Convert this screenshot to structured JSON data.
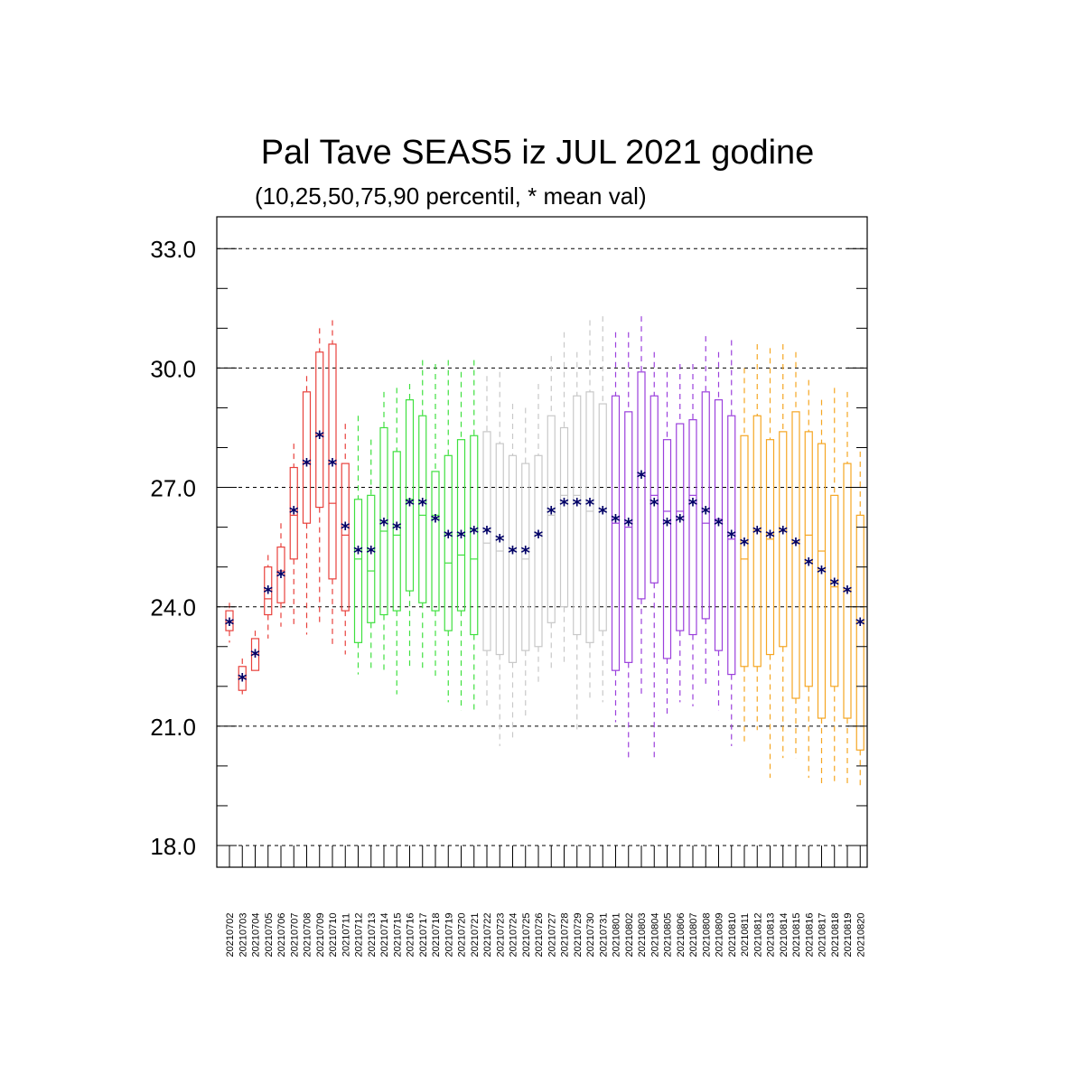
{
  "chart_data": {
    "type": "box",
    "title": "Pal Tave SEAS5 iz JUL 2021 godine",
    "subtitle": "(10,25,50,75,90 percentil, * mean val)",
    "ylim": [
      18.0,
      33.8
    ],
    "yticks": [
      "18.0",
      "21.0",
      "24.0",
      "27.0",
      "30.0",
      "33.0"
    ],
    "ytick_values": [
      18,
      21,
      24,
      27,
      30,
      33
    ],
    "grid": "dashed horizontal at major ticks",
    "mean_color": "#000066",
    "month_colors": [
      "#e8413c",
      "#3fe03f",
      "#c8c8c8",
      "#9b40dc",
      "#f5a623"
    ],
    "categories": [
      "20210702",
      "20210703",
      "20210704",
      "20210705",
      "20210706",
      "20210707",
      "20210708",
      "20210709",
      "20210710",
      "20210711",
      "20210712",
      "20210713",
      "20210714",
      "20210715",
      "20210716",
      "20210717",
      "20210718",
      "20210719",
      "20210720",
      "20210721",
      "20210722",
      "20210723",
      "20210724",
      "20210725",
      "20210726",
      "20210727",
      "20210728",
      "20210729",
      "20210730",
      "20210731",
      "20210801",
      "20210802",
      "20210803",
      "20210804",
      "20210805",
      "20210806",
      "20210807",
      "20210808",
      "20210809",
      "20210810",
      "20210811",
      "20210812",
      "20210813",
      "20210814",
      "20210815",
      "20210816",
      "20210817",
      "20210818",
      "20210819",
      "20210820"
    ],
    "group": [
      0,
      0,
      0,
      0,
      0,
      0,
      0,
      0,
      0,
      0,
      1,
      1,
      1,
      1,
      1,
      1,
      1,
      1,
      1,
      1,
      2,
      2,
      2,
      2,
      2,
      2,
      2,
      2,
      2,
      2,
      3,
      3,
      3,
      3,
      3,
      3,
      3,
      3,
      3,
      3,
      4,
      4,
      4,
      4,
      4,
      4,
      4,
      4,
      4,
      4
    ],
    "p10": [
      23.1,
      21.8,
      22.4,
      23.2,
      23.5,
      23.5,
      23.3,
      23.6,
      23.0,
      22.8,
      22.3,
      22.4,
      22.4,
      21.8,
      22.5,
      22.4,
      22.2,
      21.6,
      21.4,
      21.4,
      21.5,
      20.5,
      20.7,
      21.2,
      22.0,
      22.4,
      22.6,
      20.9,
      21.7,
      21.6,
      21.1,
      20.2,
      21.8,
      20.2,
      21.2,
      21.6,
      21.5,
      22.0,
      21.4,
      20.5,
      20.6,
      20.9,
      19.7,
      20.2,
      20.2,
      19.7,
      19.5,
      19.6,
      19.5,
      19.5
    ],
    "p25": [
      23.4,
      21.9,
      22.4,
      23.8,
      24.1,
      25.2,
      26.1,
      26.5,
      24.7,
      23.9,
      23.1,
      23.6,
      23.8,
      23.9,
      24.4,
      24.1,
      23.9,
      23.4,
      23.9,
      23.3,
      22.9,
      22.8,
      22.6,
      22.9,
      23.0,
      23.6,
      24.0,
      23.3,
      23.1,
      23.4,
      22.4,
      22.6,
      24.2,
      24.6,
      22.7,
      23.4,
      23.3,
      23.7,
      22.9,
      22.3,
      22.5,
      22.5,
      22.8,
      23.0,
      21.7,
      22.0,
      21.2,
      22.0,
      21.2,
      20.4
    ],
    "p50": [
      23.6,
      22.2,
      22.8,
      24.2,
      24.9,
      26.3,
      27.6,
      28.3,
      26.6,
      25.8,
      25.2,
      24.9,
      25.9,
      25.8,
      26.7,
      26.3,
      26.3,
      25.1,
      25.3,
      25.2,
      25.6,
      25.4,
      25.4,
      25.2,
      25.8,
      26.3,
      26.8,
      26.8,
      26.4,
      26.4,
      26.1,
      26.0,
      27.3,
      26.8,
      26.4,
      26.4,
      26.8,
      26.1,
      26.2,
      25.7,
      25.2,
      25.9,
      25.7,
      25.9,
      25.6,
      25.8,
      25.4,
      24.5,
      24.4,
      23.6
    ],
    "p75": [
      23.9,
      22.5,
      23.2,
      25.0,
      25.5,
      27.5,
      29.4,
      30.4,
      30.6,
      27.6,
      26.7,
      26.8,
      28.5,
      27.9,
      29.2,
      28.8,
      27.4,
      27.8,
      28.2,
      28.3,
      28.4,
      28.1,
      27.8,
      27.6,
      27.8,
      28.8,
      28.5,
      29.3,
      29.4,
      29.1,
      29.3,
      28.9,
      29.9,
      29.3,
      28.2,
      28.6,
      28.7,
      29.4,
      29.2,
      28.8,
      28.3,
      28.8,
      28.2,
      28.4,
      28.9,
      28.4,
      28.1,
      26.8,
      27.6,
      26.3
    ],
    "p90": [
      24.1,
      22.7,
      23.4,
      25.3,
      26.1,
      28.1,
      29.8,
      31.0,
      31.2,
      28.6,
      28.8,
      28.2,
      29.4,
      29.5,
      29.6,
      30.2,
      30.1,
      30.2,
      29.9,
      30.2,
      29.8,
      29.9,
      29.1,
      29.0,
      29.6,
      30.3,
      30.9,
      30.4,
      31.2,
      31.3,
      30.9,
      30.9,
      31.3,
      30.4,
      29.9,
      30.1,
      30.1,
      30.8,
      30.4,
      30.7,
      30.0,
      30.6,
      30.5,
      30.6,
      30.4,
      29.7,
      29.2,
      29.5,
      29.4,
      27.9
    ],
    "mean": [
      23.6,
      22.2,
      22.8,
      24.4,
      24.8,
      26.4,
      27.6,
      28.3,
      27.6,
      26.0,
      25.4,
      25.4,
      26.1,
      26.0,
      26.6,
      26.6,
      26.2,
      25.8,
      25.8,
      25.9,
      25.9,
      25.7,
      25.4,
      25.4,
      25.8,
      26.4,
      26.6,
      26.6,
      26.6,
      26.4,
      26.2,
      26.1,
      27.3,
      26.6,
      26.1,
      26.2,
      26.6,
      26.4,
      26.1,
      25.8,
      25.6,
      25.9,
      25.8,
      25.9,
      25.6,
      25.1,
      24.9,
      24.6,
      24.4,
      23.6
    ]
  }
}
